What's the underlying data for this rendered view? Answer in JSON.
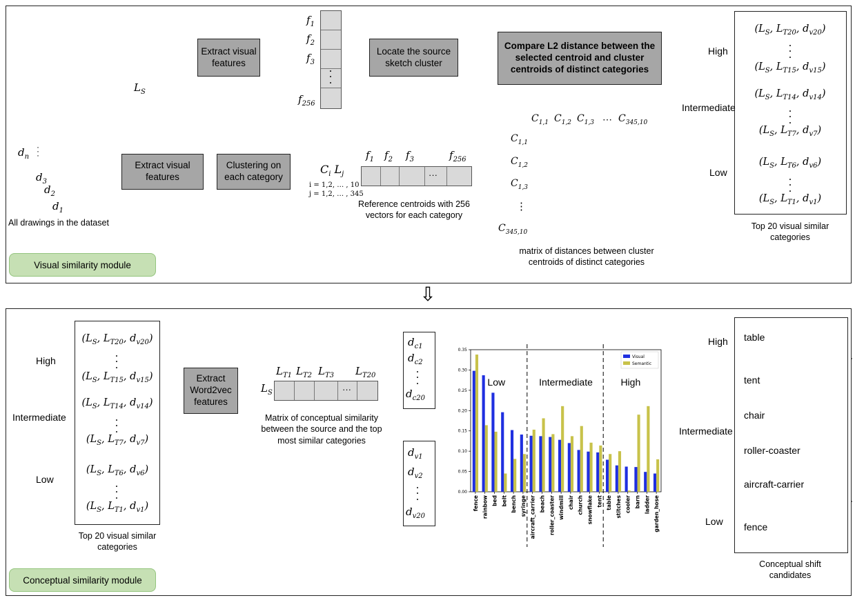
{
  "visual_module": {
    "label": "Visual similarity module",
    "extract_visual_1": "Extract visual features",
    "locate_cluster": "Locate the source sketch cluster",
    "compare_l2": "Compare L2 distance between the selected centroid and cluster centroids of distinct categories",
    "extract_visual_2": "Extract visual features",
    "clustering": "Clustering on each category",
    "all_drawings_caption": "All drawings in the dataset",
    "ref_centroids_caption": "Reference centroids with 256 vectors for each category",
    "matrix_caption": "matrix of distances between cluster centroids of distinct categories",
    "top20_caption": "Top 20 visual similar categories",
    "ci_lj": "C_i L_j",
    "ci_range_i": "i = 1,2, … , 10",
    "ci_range_j": "j = 1,2, … , 345",
    "ls_label": "L_S",
    "feature_labels": [
      "f1",
      "f2",
      "f3",
      "f256"
    ],
    "drawing_labels": [
      "dn",
      "d3",
      "d2",
      "d1"
    ],
    "matrix_col_labels": [
      "C1,1",
      "C1,2",
      "C1,3",
      "⋯",
      "C345,10"
    ],
    "matrix_row_labels": [
      "C1,1",
      "C1,2",
      "C1,3",
      "⋮",
      "C345,10"
    ],
    "levels": [
      "High",
      "Intermediate",
      "Low"
    ]
  },
  "conceptual_module": {
    "label": "Conceptual similarity module",
    "extract_w2v": "Extract Word2vec features",
    "matrix_caption": "Matrix of conceptual similarity between the source and the top most similar categories",
    "top20_caption": "Top 20 visual similar categories",
    "candidates_caption": "Conceptual shift candidates",
    "lt_labels": [
      "LT1",
      "LT2",
      "LT3",
      "LT20"
    ],
    "dc_labels": [
      "dc1",
      "dc2",
      "dc20"
    ],
    "dv_labels": [
      "dv1",
      "dv2",
      "dv20"
    ],
    "levels": [
      "High",
      "Intermediate",
      "Low"
    ],
    "candidates": {
      "high": [
        "table"
      ],
      "intermediate": [
        "tent",
        "chair",
        "roller-coaster",
        "aircraft-carrier"
      ],
      "low": [
        "fence"
      ]
    }
  },
  "tuples": {
    "t20": "(LS, LT20, dv20)",
    "t15": "(LS, LT15, dv15)",
    "t14": "(LS, LT14, dv14)",
    "t7": "(LS, LT7, dv7)",
    "t6": "(LS, LT6, dv6)",
    "t1": "(LS, LT1, dv1)"
  },
  "down_arrow": "⇩",
  "chart_data": {
    "type": "bar",
    "categories": [
      "fence",
      "rainbow",
      "bed",
      "belt",
      "bench",
      "syringe",
      "aircraft_carrier",
      "beach",
      "roller_coaster",
      "windmill",
      "chair",
      "church",
      "snowflake",
      "tent",
      "table",
      "stitches",
      "cooler",
      "barn",
      "ladder",
      "garden_hose"
    ],
    "series": [
      {
        "name": "Visual",
        "color": "#1f2fe0",
        "values": [
          0.298,
          0.287,
          0.244,
          0.196,
          0.152,
          0.141,
          0.138,
          0.137,
          0.135,
          0.128,
          0.12,
          0.103,
          0.099,
          0.097,
          0.079,
          0.065,
          0.062,
          0.061,
          0.049,
          0.045
        ]
      },
      {
        "name": "Semantic",
        "color": "#c8c24a",
        "values": [
          0.338,
          0.164,
          0.148,
          0.045,
          0.081,
          0.093,
          0.153,
          0.181,
          0.142,
          0.211,
          0.137,
          0.162,
          0.121,
          0.114,
          0.093,
          0.1,
          0.003,
          0.19,
          0.211,
          0.08
        ]
      }
    ],
    "ylim": [
      0,
      0.35
    ],
    "yticks": [
      "0.00",
      "0.05",
      "0.10",
      "0.15",
      "0.20",
      "0.25",
      "0.30",
      "0.35"
    ],
    "region_labels": [
      "Low",
      "Intermediate",
      "High"
    ],
    "legend": "top-right"
  }
}
